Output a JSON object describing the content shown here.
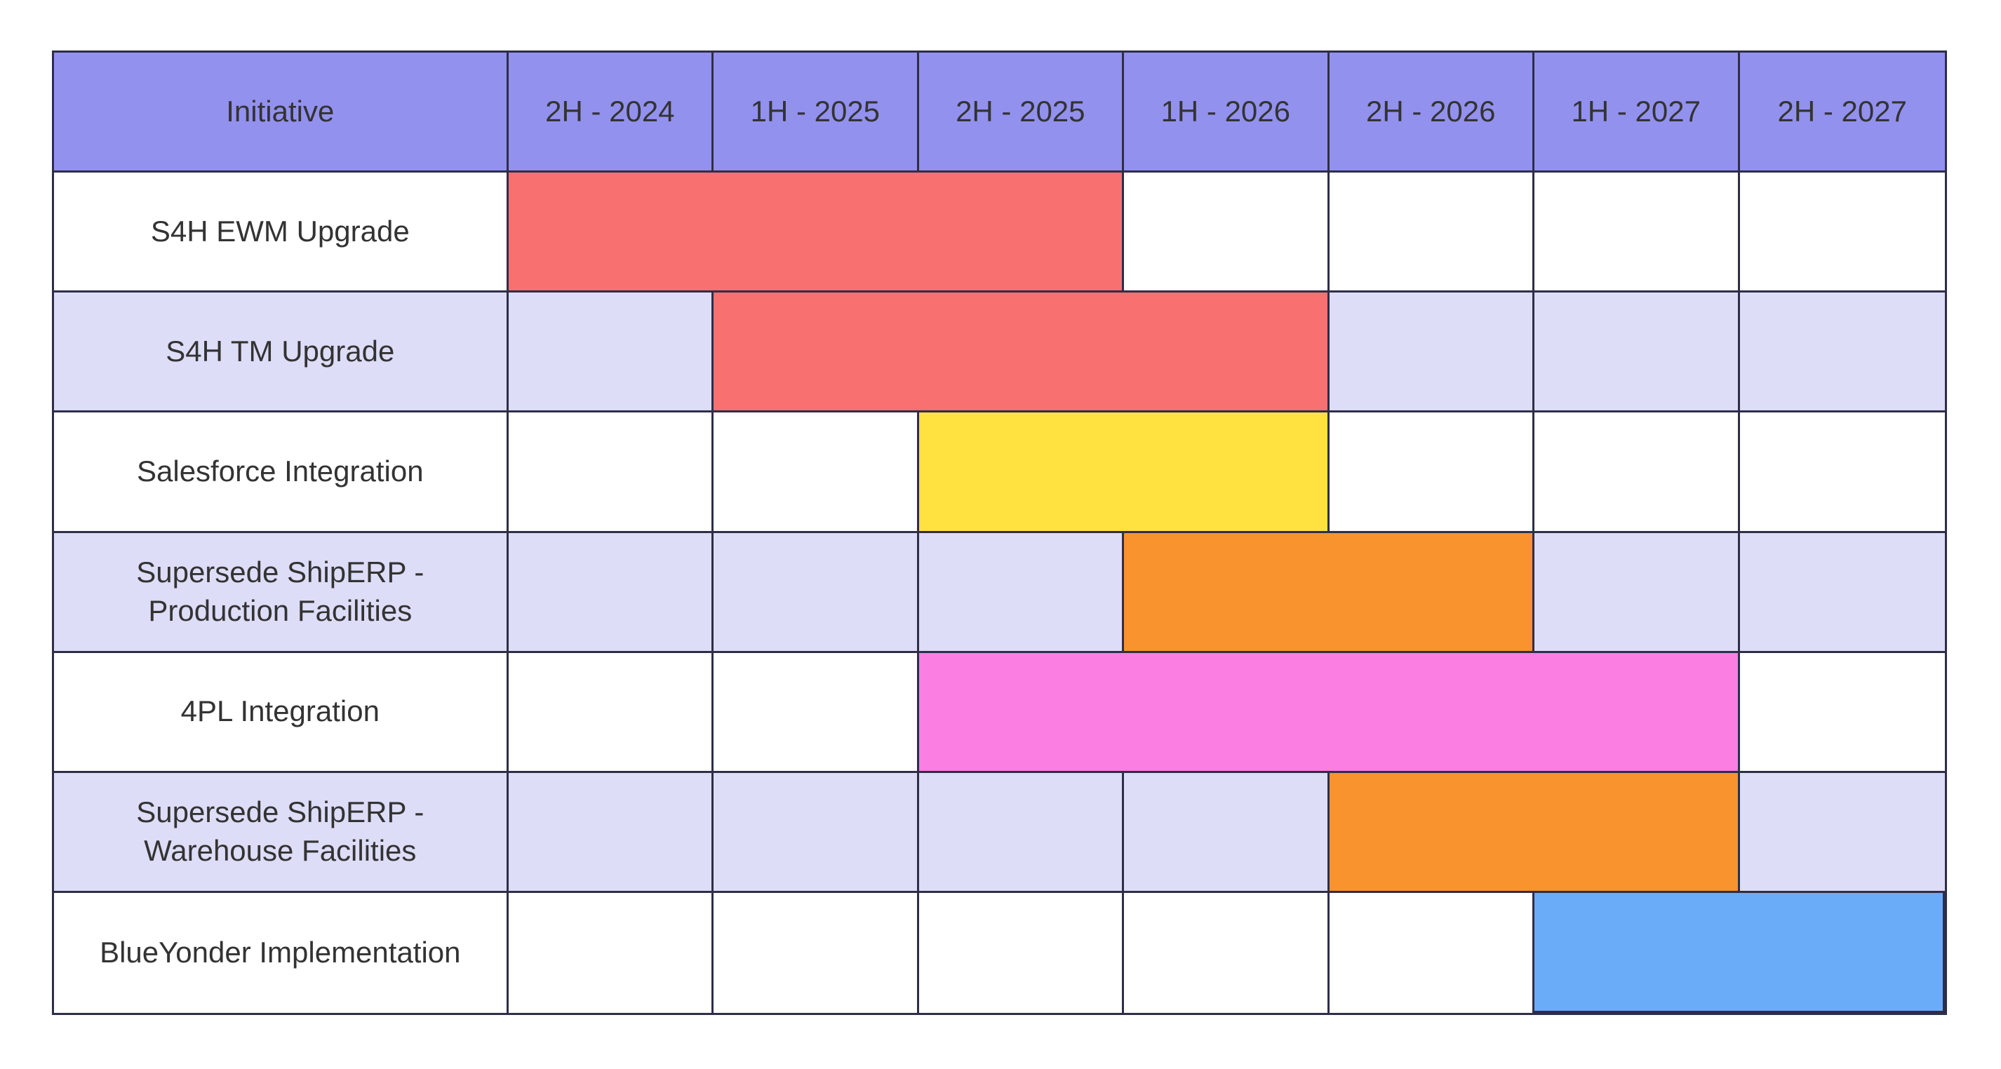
{
  "colors": {
    "header_fill": "#9391EE",
    "row_fill": "#FFFFFF",
    "row_alt_fill": "#DEDDF8",
    "grid_line": "#2E2E48",
    "text": "#333333",
    "bar_red": "#F97070",
    "bar_yellow": "#FFE13F",
    "bar_orange": "#F8932D",
    "bar_pink": "#FB7EE2",
    "bar_blue": "#6BACF8"
  },
  "chart_data": {
    "type": "table",
    "subtype": "gantt-roadmap",
    "legend": "none",
    "grid": "on",
    "columns": [
      "Initiative",
      "2H - 2024",
      "1H - 2025",
      "2H - 2025",
      "1H - 2026",
      "2H - 2026",
      "1H - 2027",
      "2H - 2027"
    ],
    "rows": [
      {
        "initiative": "S4H EWM Upgrade",
        "bar": {
          "start": "2H - 2024",
          "end": "2H - 2025",
          "color": "#F97070",
          "color_name": "red"
        }
      },
      {
        "initiative": "S4H TM Upgrade",
        "bar": {
          "start": "1H - 2025",
          "end": "1H - 2026",
          "color": "#F97070",
          "color_name": "red"
        }
      },
      {
        "initiative": "Salesforce Integration",
        "bar": {
          "start": "2H - 2025",
          "end": "1H - 2026",
          "color": "#FFE13F",
          "color_name": "yellow"
        }
      },
      {
        "initiative": "Supersede ShipERP -\nProduction Facilities",
        "bar": {
          "start": "1H - 2026",
          "end": "2H - 2026",
          "color": "#F8932D",
          "color_name": "orange"
        }
      },
      {
        "initiative": "4PL Integration",
        "bar": {
          "start": "2H - 2025",
          "end": "1H - 2027",
          "color": "#FB7EE2",
          "color_name": "pink"
        }
      },
      {
        "initiative": "Supersede ShipERP -\nWarehouse Facilities",
        "bar": {
          "start": "2H - 2026",
          "end": "1H - 2027",
          "color": "#F8932D",
          "color_name": "orange"
        }
      },
      {
        "initiative": "BlueYonder Implementation",
        "bar": {
          "start": "1H - 2027",
          "end": "2H - 2027",
          "color": "#6BACF8",
          "color_name": "blue"
        }
      }
    ]
  }
}
